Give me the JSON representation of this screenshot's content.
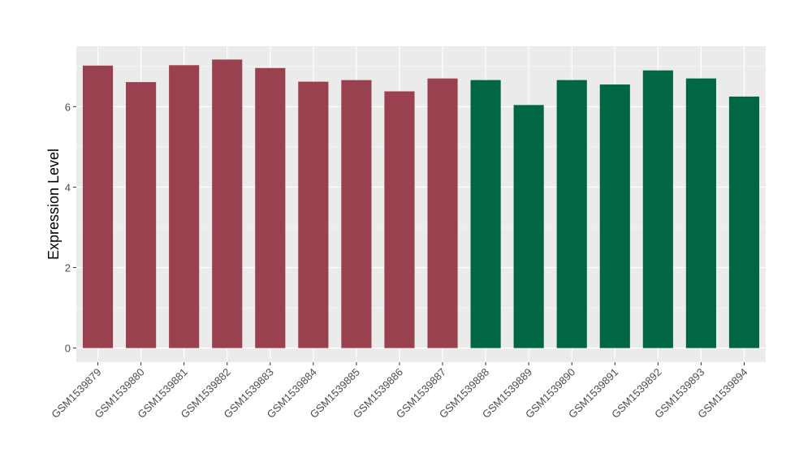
{
  "chart_data": {
    "type": "bar",
    "title": "",
    "xlabel": "",
    "ylabel": "Expression Level",
    "ylim": [
      -0.35,
      7.5
    ],
    "yticks": [
      0,
      2,
      4,
      6
    ],
    "ytick_labels": [
      "0",
      "2",
      "4",
      "6"
    ],
    "grid": true,
    "legend": "none",
    "categories": [
      "GSM1539879",
      "GSM1539880",
      "GSM1539881",
      "GSM1539882",
      "GSM1539883",
      "GSM1539884",
      "GSM1539885",
      "GSM1539886",
      "GSM1539887",
      "GSM1539888",
      "GSM1539889",
      "GSM1539890",
      "GSM1539891",
      "GSM1539892",
      "GSM1539893",
      "GSM1539894"
    ],
    "values": [
      7.02,
      6.61,
      7.03,
      7.17,
      6.96,
      6.62,
      6.66,
      6.38,
      6.7,
      6.66,
      6.04,
      6.66,
      6.55,
      6.9,
      6.7,
      6.25
    ],
    "bar_colors": [
      "#9a4150",
      "#9a4150",
      "#9a4150",
      "#9a4150",
      "#9a4150",
      "#9a4150",
      "#9a4150",
      "#9a4150",
      "#9a4150",
      "#006644",
      "#006644",
      "#006644",
      "#006644",
      "#006644",
      "#006644",
      "#006644"
    ],
    "colors": {
      "panel_background": "#ebebeb",
      "grid_major": "#ffffff",
      "grid_minor": "#f5f5f5",
      "tick_text": "#4d4d4d",
      "label_text": "#000000"
    }
  }
}
